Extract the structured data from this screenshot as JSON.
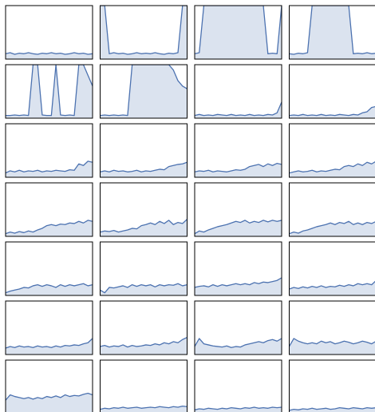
{
  "chart_data": [
    {
      "type": "area",
      "color": "#4c72b0",
      "ylim": [
        0,
        1
      ],
      "values": [
        0.1,
        0.12,
        0.09,
        0.11,
        0.1,
        0.12,
        0.1,
        0.09,
        0.11,
        0.1,
        0.12,
        0.1,
        0.11,
        0.09,
        0.1,
        0.12,
        0.1,
        0.11,
        0.09,
        0.1
      ]
    },
    {
      "type": "area",
      "color": "#4c72b0",
      "ylim": [
        0,
        1
      ],
      "values": [
        1,
        1,
        0.1,
        0.12,
        0.1,
        0.11,
        0.09,
        0.1,
        0.12,
        0.1,
        0.11,
        0.1,
        0.12,
        0.1,
        0.09,
        0.11,
        0.1,
        0.12,
        1,
        1
      ]
    },
    {
      "type": "area",
      "color": "#4c72b0",
      "ylim": [
        0,
        1
      ],
      "values": [
        0.1,
        0.12,
        1,
        1,
        1,
        1,
        1,
        1,
        1,
        1,
        1,
        1,
        1,
        1,
        1,
        1,
        0.1,
        0.11,
        0.1,
        1
      ]
    },
    {
      "type": "area",
      "color": "#4c72b0",
      "ylim": [
        0,
        1
      ],
      "values": [
        0.1,
        0.09,
        0.11,
        0.1,
        0.12,
        1,
        1,
        1,
        1,
        1,
        1,
        1,
        1,
        1,
        0.1,
        0.11,
        0.1,
        0.12,
        0.1,
        0.11
      ]
    },
    {
      "type": "area",
      "color": "#4c72b0",
      "ylim": [
        0,
        1
      ],
      "values": [
        0.05,
        0.05,
        0.06,
        0.05,
        0.06,
        0.05,
        1,
        1,
        0.06,
        0.05,
        0.05,
        1,
        0.06,
        0.05,
        0.06,
        0.05,
        1,
        1,
        0.8,
        0.6
      ]
    },
    {
      "type": "area",
      "color": "#4c72b0",
      "ylim": [
        0,
        1
      ],
      "values": [
        0.05,
        0.06,
        0.05,
        0.06,
        0.05,
        0.06,
        0.05,
        1,
        1,
        1,
        1,
        1,
        1,
        1,
        1,
        1,
        0.9,
        0.7,
        0.6,
        0.55
      ]
    },
    {
      "type": "area",
      "color": "#4c72b0",
      "ylim": [
        0,
        1
      ],
      "values": [
        0.05,
        0.07,
        0.05,
        0.06,
        0.05,
        0.07,
        0.06,
        0.05,
        0.07,
        0.05,
        0.06,
        0.05,
        0.07,
        0.05,
        0.06,
        0.05,
        0.07,
        0.06,
        0.1,
        0.3
      ]
    },
    {
      "type": "area",
      "color": "#4c72b0",
      "ylim": [
        0,
        1
      ],
      "values": [
        0.05,
        0.06,
        0.05,
        0.07,
        0.05,
        0.06,
        0.05,
        0.07,
        0.05,
        0.06,
        0.05,
        0.07,
        0.06,
        0.05,
        0.07,
        0.06,
        0.1,
        0.12,
        0.2,
        0.22
      ]
    },
    {
      "type": "area",
      "color": "#4c72b0",
      "ylim": [
        0,
        1
      ],
      "values": [
        0.08,
        0.12,
        0.1,
        0.13,
        0.1,
        0.12,
        0.11,
        0.13,
        0.1,
        0.12,
        0.11,
        0.13,
        0.12,
        0.11,
        0.14,
        0.13,
        0.25,
        0.22,
        0.3,
        0.28
      ]
    },
    {
      "type": "area",
      "color": "#4c72b0",
      "ylim": [
        0,
        1
      ],
      "values": [
        0.1,
        0.12,
        0.1,
        0.13,
        0.11,
        0.12,
        0.1,
        0.11,
        0.13,
        0.1,
        0.12,
        0.11,
        0.13,
        0.15,
        0.14,
        0.2,
        0.22,
        0.24,
        0.25,
        0.28
      ]
    },
    {
      "type": "area",
      "color": "#4c72b0",
      "ylim": [
        0,
        1
      ],
      "values": [
        0.1,
        0.12,
        0.11,
        0.13,
        0.1,
        0.12,
        0.11,
        0.1,
        0.12,
        0.14,
        0.13,
        0.15,
        0.2,
        0.22,
        0.24,
        0.2,
        0.25,
        0.22,
        0.26,
        0.24
      ]
    },
    {
      "type": "area",
      "color": "#4c72b0",
      "ylim": [
        0,
        1
      ],
      "values": [
        0.08,
        0.1,
        0.12,
        0.1,
        0.11,
        0.13,
        0.1,
        0.12,
        0.11,
        0.13,
        0.15,
        0.14,
        0.2,
        0.22,
        0.2,
        0.25,
        0.22,
        0.28,
        0.25,
        0.3
      ]
    },
    {
      "type": "area",
      "color": "#4c72b0",
      "ylim": [
        0,
        1
      ],
      "values": [
        0.05,
        0.08,
        0.06,
        0.09,
        0.07,
        0.1,
        0.08,
        0.12,
        0.15,
        0.2,
        0.22,
        0.2,
        0.23,
        0.22,
        0.25,
        0.24,
        0.28,
        0.25,
        0.3,
        0.28
      ]
    },
    {
      "type": "area",
      "color": "#4c72b0",
      "ylim": [
        0,
        1
      ],
      "values": [
        0.08,
        0.1,
        0.09,
        0.11,
        0.08,
        0.1,
        0.12,
        0.15,
        0.14,
        0.2,
        0.22,
        0.25,
        0.22,
        0.28,
        0.24,
        0.3,
        0.22,
        0.26,
        0.24,
        0.32
      ]
    },
    {
      "type": "area",
      "color": "#4c72b0",
      "ylim": [
        0,
        1
      ],
      "values": [
        0.05,
        0.1,
        0.08,
        0.12,
        0.15,
        0.18,
        0.2,
        0.22,
        0.25,
        0.28,
        0.26,
        0.3,
        0.25,
        0.28,
        0.26,
        0.3,
        0.27,
        0.3,
        0.28,
        0.3
      ]
    },
    {
      "type": "area",
      "color": "#4c72b0",
      "ylim": [
        0,
        1
      ],
      "values": [
        0.05,
        0.08,
        0.06,
        0.1,
        0.12,
        0.15,
        0.18,
        0.2,
        0.22,
        0.25,
        0.22,
        0.26,
        0.24,
        0.28,
        0.22,
        0.25,
        0.22,
        0.26,
        0.24,
        0.28
      ]
    },
    {
      "type": "area",
      "color": "#4c72b0",
      "ylim": [
        0,
        1
      ],
      "values": [
        0.05,
        0.08,
        0.1,
        0.12,
        0.15,
        0.14,
        0.18,
        0.2,
        0.17,
        0.2,
        0.18,
        0.15,
        0.2,
        0.17,
        0.2,
        0.18,
        0.2,
        0.22,
        0.18,
        0.2
      ]
    },
    {
      "type": "area",
      "color": "#4c72b0",
      "ylim": [
        0,
        1
      ],
      "values": [
        0.1,
        0.05,
        0.15,
        0.14,
        0.16,
        0.18,
        0.15,
        0.2,
        0.17,
        0.2,
        0.18,
        0.2,
        0.16,
        0.2,
        0.18,
        0.2,
        0.19,
        0.22,
        0.18,
        0.2
      ]
    },
    {
      "type": "area",
      "color": "#4c72b0",
      "ylim": [
        0,
        1
      ],
      "values": [
        0.15,
        0.17,
        0.18,
        0.16,
        0.2,
        0.17,
        0.2,
        0.18,
        0.2,
        0.22,
        0.2,
        0.22,
        0.2,
        0.24,
        0.22,
        0.25,
        0.24,
        0.26,
        0.28,
        0.33
      ]
    },
    {
      "type": "area",
      "color": "#4c72b0",
      "ylim": [
        0,
        1
      ],
      "values": [
        0.12,
        0.15,
        0.13,
        0.16,
        0.14,
        0.17,
        0.15,
        0.18,
        0.15,
        0.17,
        0.16,
        0.19,
        0.17,
        0.2,
        0.18,
        0.22,
        0.2,
        0.22,
        0.2,
        0.28
      ]
    },
    {
      "type": "area",
      "color": "#4c72b0",
      "ylim": [
        0,
        1
      ],
      "values": [
        0.12,
        0.15,
        0.13,
        0.16,
        0.14,
        0.15,
        0.13,
        0.16,
        0.14,
        0.15,
        0.13,
        0.16,
        0.14,
        0.17,
        0.16,
        0.18,
        0.17,
        0.2,
        0.22,
        0.3
      ]
    },
    {
      "type": "area",
      "color": "#4c72b0",
      "ylim": [
        0,
        1
      ],
      "values": [
        0.15,
        0.17,
        0.14,
        0.16,
        0.15,
        0.18,
        0.14,
        0.17,
        0.15,
        0.16,
        0.18,
        0.17,
        0.2,
        0.18,
        0.22,
        0.2,
        0.24,
        0.22,
        0.28,
        0.32
      ]
    },
    {
      "type": "area",
      "color": "#4c72b0",
      "ylim": [
        0,
        1
      ],
      "values": [
        0.15,
        0.3,
        0.2,
        0.18,
        0.16,
        0.15,
        0.14,
        0.16,
        0.13,
        0.15,
        0.14,
        0.18,
        0.2,
        0.22,
        0.24,
        0.22,
        0.26,
        0.28,
        0.25,
        0.3
      ]
    },
    {
      "type": "area",
      "color": "#4c72b0",
      "ylim": [
        0,
        1
      ],
      "values": [
        0.15,
        0.3,
        0.25,
        0.22,
        0.2,
        0.22,
        0.2,
        0.25,
        0.22,
        0.24,
        0.2,
        0.22,
        0.25,
        0.23,
        0.2,
        0.22,
        0.25,
        0.23,
        0.2,
        0.25
      ]
    },
    {
      "type": "area",
      "color": "#4c72b0",
      "ylim": [
        0,
        1
      ],
      "values": [
        0.25,
        0.35,
        0.32,
        0.3,
        0.28,
        0.3,
        0.27,
        0.3,
        0.28,
        0.32,
        0.3,
        0.33,
        0.3,
        0.35,
        0.32,
        0.34,
        0.33,
        0.36,
        0.38,
        0.35
      ]
    },
    {
      "type": "area",
      "color": "#4c72b0",
      "ylim": [
        0,
        1
      ],
      "values": [
        0.08,
        0.1,
        0.09,
        0.11,
        0.1,
        0.12,
        0.1,
        0.11,
        0.12,
        0.1,
        0.11,
        0.12,
        0.11,
        0.13,
        0.12,
        0.11,
        0.13,
        0.12,
        0.14,
        0.13
      ]
    },
    {
      "type": "area",
      "color": "#4c72b0",
      "ylim": [
        0,
        1
      ],
      "values": [
        0.07,
        0.09,
        0.08,
        0.1,
        0.09,
        0.08,
        0.1,
        0.09,
        0.11,
        0.1,
        0.09,
        0.11,
        0.1,
        0.12,
        0.1,
        0.11,
        0.1,
        0.12,
        0.11,
        0.12
      ]
    },
    {
      "type": "area",
      "color": "#4c72b0",
      "ylim": [
        0,
        1
      ],
      "values": [
        0.06,
        0.08,
        0.07,
        0.09,
        0.08,
        0.1,
        0.08,
        0.09,
        0.1,
        0.08,
        0.09,
        0.11,
        0.1,
        0.09,
        0.11,
        0.1,
        0.09,
        0.11,
        0.1,
        0.11
      ]
    }
  ]
}
